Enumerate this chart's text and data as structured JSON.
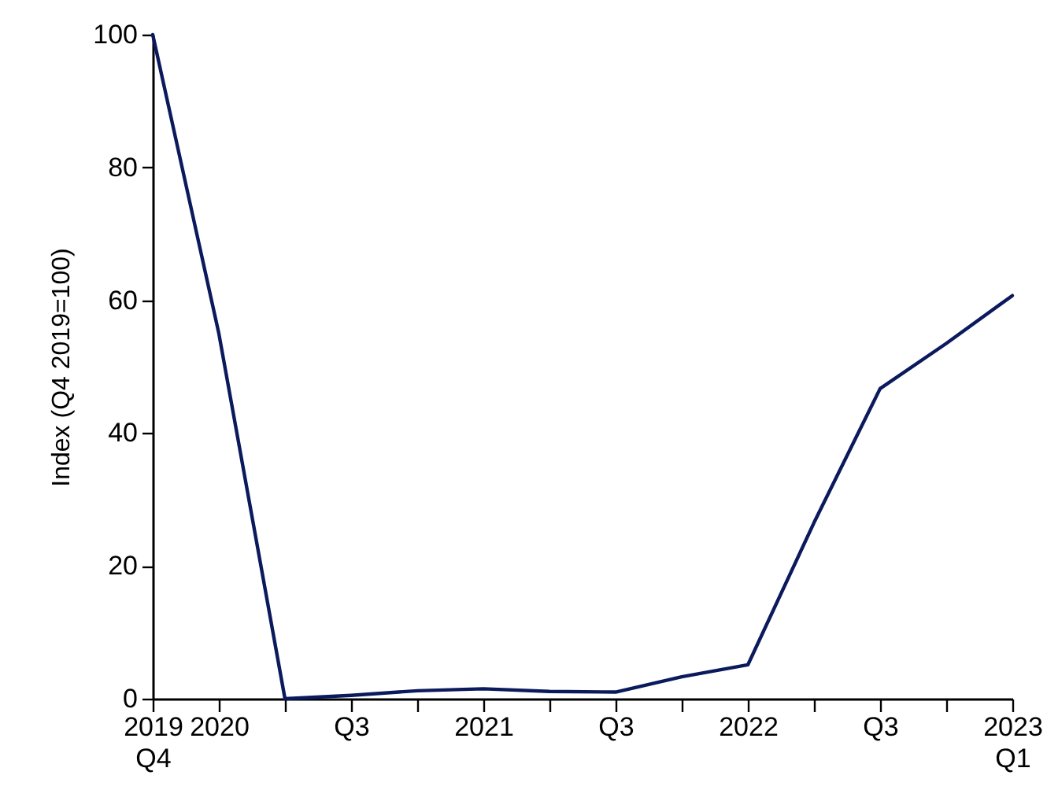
{
  "chart_data": {
    "type": "line",
    "ylabel": "Index (Q4 2019=100)",
    "categories": [
      "2019\nQ4",
      "2020",
      null,
      "Q3",
      null,
      "2021",
      null,
      "Q3",
      null,
      "2022",
      null,
      "Q3",
      null,
      "2023\nQ1"
    ],
    "series": [
      {
        "color": "#0b1a5c",
        "values": [
          100,
          55,
          0,
          0.5,
          1.2,
          1.5,
          1.1,
          1.0,
          3.3,
          5.1,
          26.5,
          46.7,
          53.5,
          60.7
        ]
      }
    ],
    "ylim": [
      0,
      100
    ],
    "yticks": [
      0,
      20,
      40,
      60,
      80,
      100
    ],
    "grid": false,
    "marker": "none",
    "line_style": "solid"
  }
}
